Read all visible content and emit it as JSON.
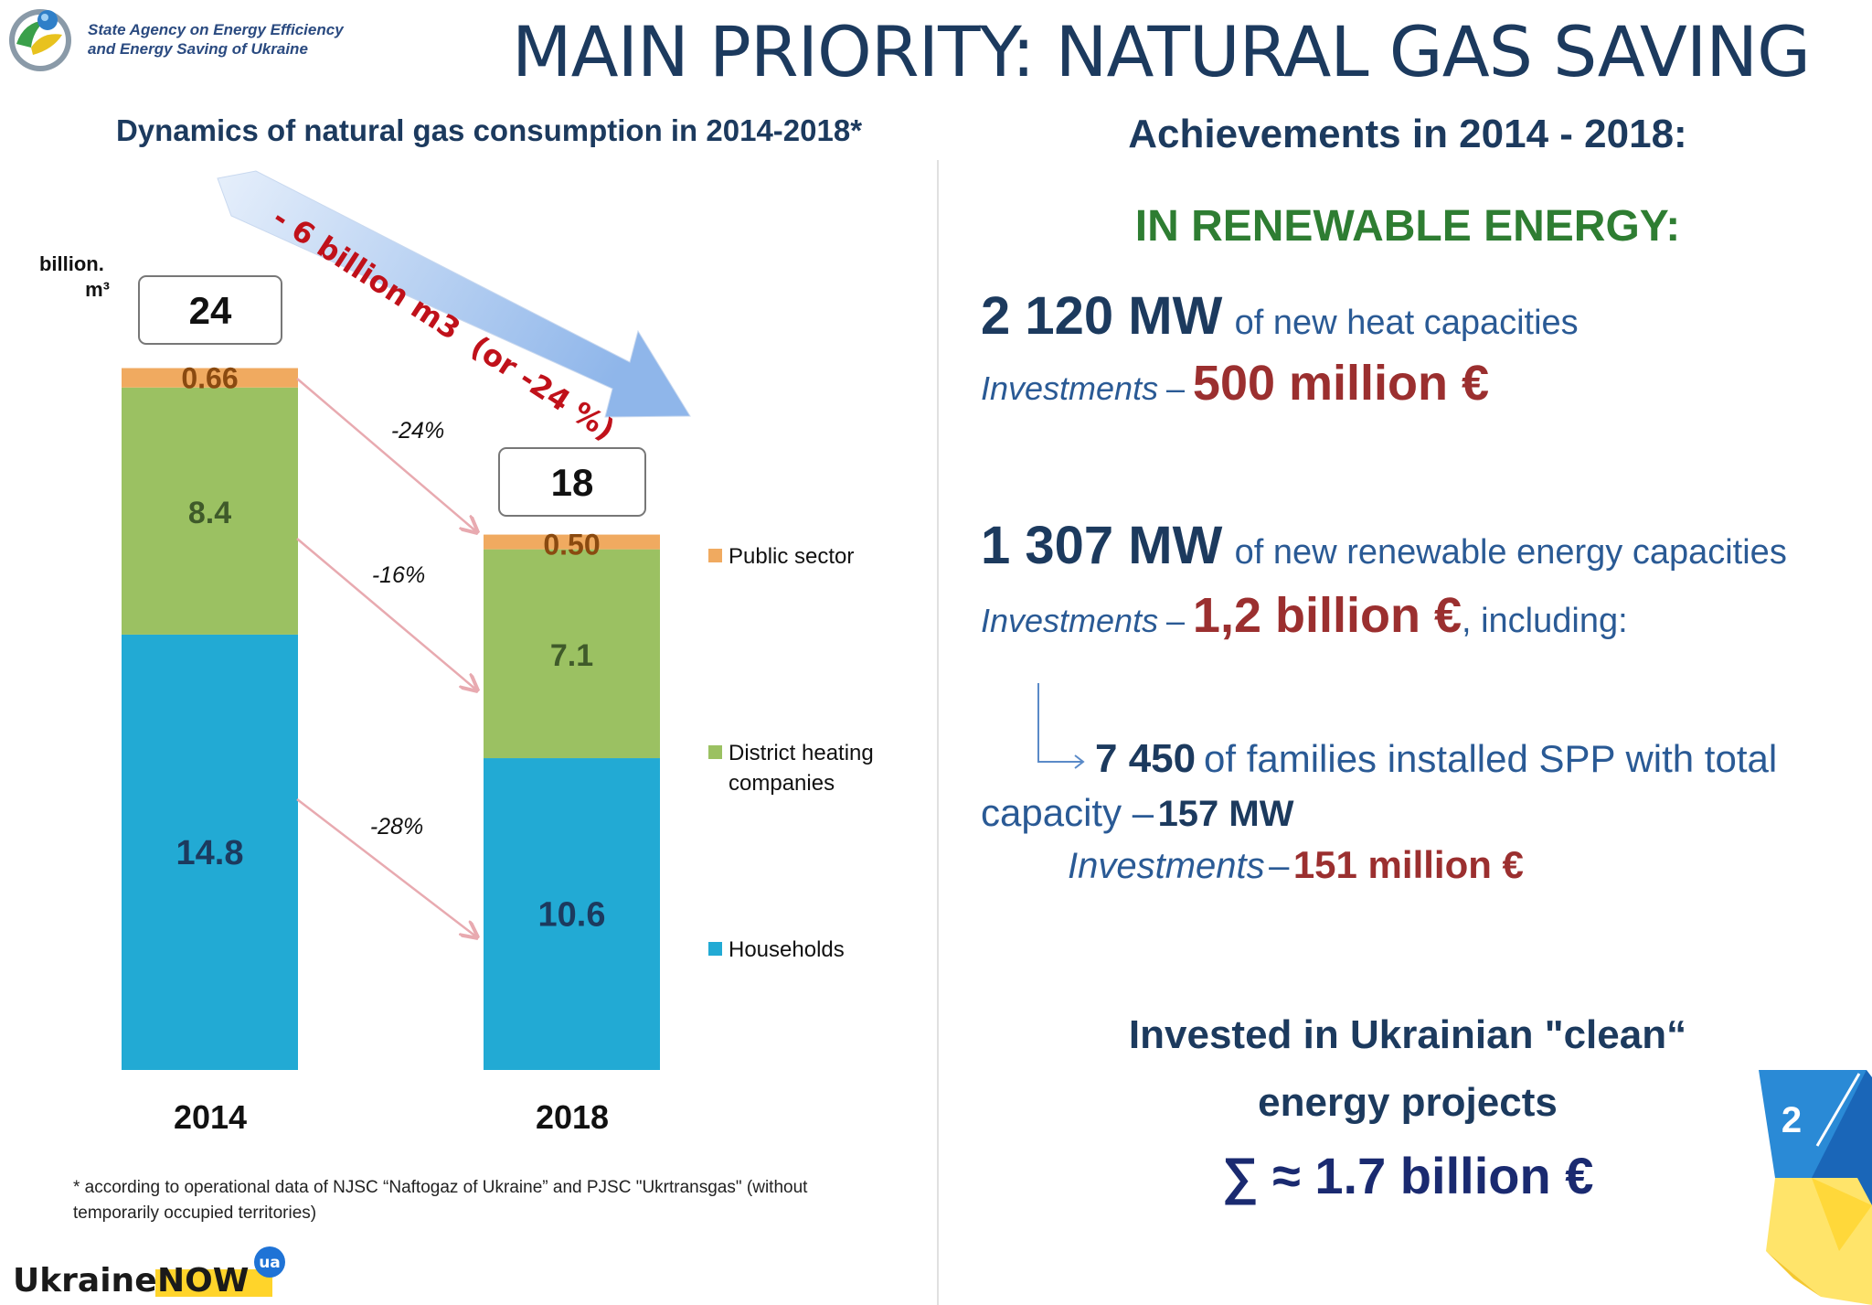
{
  "header": {
    "agency_name": "State Agency on Energy Efficiency\nand Energy Saving of Ukraine",
    "main_title": "MAIN PRIORITY: NATURAL GAS SAVING"
  },
  "colors": {
    "households": "#22aad4",
    "district_heating": "#9bc162",
    "public_sector": "#f0aa60",
    "dark_blue": "#1c3a5e",
    "money_red": "#9b2f2f",
    "green_title": "#2e7d32"
  },
  "chart_data": {
    "type": "bar",
    "stacked": true,
    "title": "Dynamics of natural gas consumption in 2014-2018*",
    "ylabel": "billion.\nm³",
    "categories": [
      "2014",
      "2018"
    ],
    "ylim": [
      0,
      24
    ],
    "grid": false,
    "legend_position": "right",
    "series": [
      {
        "name": "Households",
        "values": [
          14.8,
          10.6
        ],
        "labels": [
          "14.8",
          "10.6"
        ]
      },
      {
        "name": "District heating companies",
        "values": [
          8.4,
          7.1
        ],
        "labels": [
          "8.4",
          "7.1"
        ]
      },
      {
        "name": "Public sector",
        "values": [
          0.66,
          0.5
        ],
        "labels": [
          "0.66",
          "0.50"
        ]
      }
    ],
    "totals": [
      "24",
      "18"
    ],
    "change_labels": [
      "-24%",
      "-16%",
      "-28%"
    ],
    "reduction_arrow": "- 6 billion m3  (or -24 %)"
  },
  "footnote": "* according to operational data of NJSC “Naftogaz of Ukraine” and PJSC \"Ukrtransgas\" (without temporarily occupied territories)",
  "brand": {
    "ukraine": "Ukraine",
    "now": "NOW",
    "ua": "ua"
  },
  "achievements": {
    "title": "Achievements in 2014 - 2018:",
    "renewable_title": "IN RENEWABLE ENERGY:",
    "heat": {
      "mw": "2 120 MW",
      "desc": "of new heat capacities",
      "inv_label": "Investments",
      "dash": "–",
      "amount": "500 million €"
    },
    "renewable": {
      "mw": "1 307 MW",
      "desc": "of new renewable energy capacities",
      "inv_label": "Investments",
      "dash": "–",
      "amount": "1,2 billion €",
      "suffix": ", including:"
    },
    "families": {
      "count": "7 450",
      "desc": "of families installed SPP with total",
      "capacity_label": "capacity –",
      "capacity_value": "157 MW",
      "inv_label": "Investments",
      "dash": "–",
      "amount": "151 million €"
    },
    "invested": {
      "line1": "Invested in Ukrainian \"clean“",
      "line2": "energy projects",
      "total": "∑ ≈ 1.7 billion €"
    }
  },
  "page_number": "2"
}
